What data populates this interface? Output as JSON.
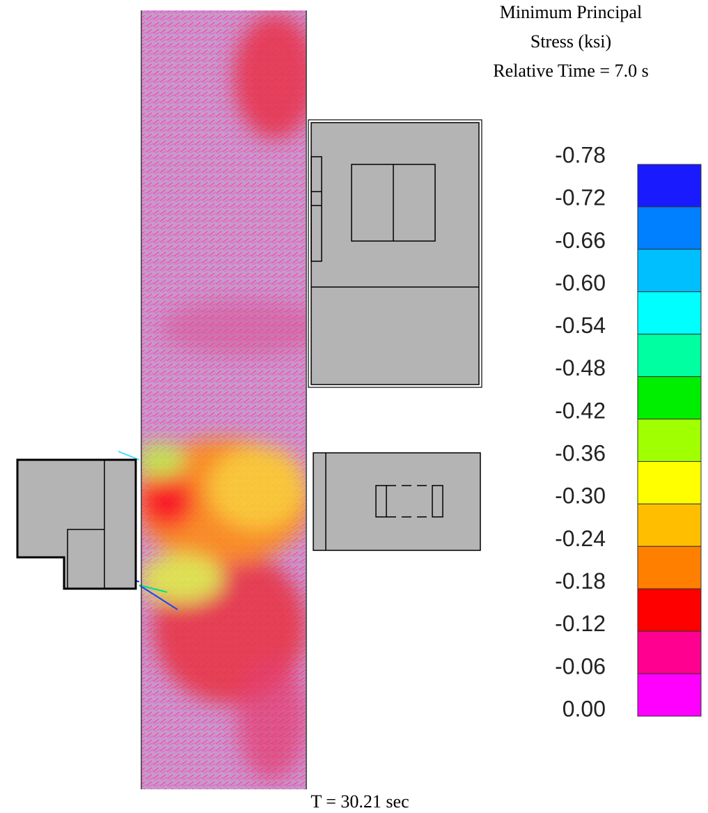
{
  "title": {
    "lines": [
      "Minimum Principal",
      "Stress (ksi)",
      "Relative Time = 7.0 s"
    ]
  },
  "legend": {
    "labels": [
      "-0.78",
      "-0.72",
      "-0.66",
      "-0.60",
      "-0.54",
      "-0.48",
      "-0.42",
      "-0.36",
      "-0.30",
      "-0.24",
      "-0.18",
      "-0.12",
      "-0.06",
      "0.00"
    ],
    "colors": [
      "#1a1aff",
      "#0080ff",
      "#00bfff",
      "#00ffff",
      "#00ffa0",
      "#00ee00",
      "#a0ff00",
      "#ffff00",
      "#ffbf00",
      "#ff8000",
      "#ff0000",
      "#ff0090",
      "#ff00ff"
    ]
  },
  "footer": "T = 30.21 sec"
}
